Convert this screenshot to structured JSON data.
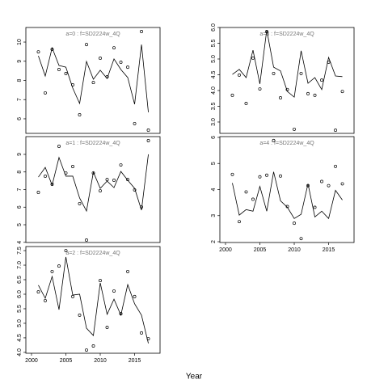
{
  "xlabel": "Year",
  "chart_data": [
    {
      "type": "line",
      "title": "a=0  :  f=SD2224w_4Q",
      "x": [
        2001,
        2002,
        2003,
        2004,
        2005,
        2006,
        2007,
        2008,
        2009,
        2010,
        2011,
        2012,
        2013,
        2014,
        2015,
        2016,
        2017
      ],
      "series": [
        {
          "style": "line",
          "color": "#000000",
          "values": [
            9.28,
            8.23,
            9.7,
            8.78,
            8.69,
            7.6,
            6.8,
            8.99,
            8.06,
            8.53,
            8.1,
            9.12,
            8.57,
            8.15,
            6.76,
            9.87,
            6.34
          ]
        },
        {
          "style": "points",
          "color": "#000000",
          "values": [
            9.49,
            7.35,
            9.62,
            8.57,
            8.36,
            7.77,
            6.21,
            9.87,
            7.89,
            9.16,
            8.19,
            9.7,
            8.95,
            8.69,
            5.75,
            10.55,
            5.41
          ]
        }
      ],
      "xlim": [
        1999.18,
        2018.7
      ],
      "ylim": [
        5.24,
        10.76
      ],
      "yticks": [
        6,
        7,
        8,
        9,
        10
      ]
    },
    {
      "type": "line",
      "title": "a=1  :  f=SD2224w_4Q",
      "x": [
        2001,
        2002,
        2003,
        2004,
        2005,
        2006,
        2007,
        2008,
        2009,
        2010,
        2011,
        2012,
        2013,
        2014,
        2015,
        2016,
        2017
      ],
      "series": [
        {
          "style": "line",
          "color": "#000000",
          "values": [
            7.71,
            8.26,
            7.25,
            8.82,
            7.76,
            7.76,
            6.52,
            5.78,
            7.99,
            7.07,
            7.48,
            7.11,
            8.03,
            7.53,
            7.07,
            5.83,
            9.0
          ]
        },
        {
          "style": "points",
          "color": "#000000",
          "values": [
            6.84,
            7.76,
            7.3,
            9.46,
            7.94,
            8.31,
            6.2,
            4.13,
            7.94,
            6.93,
            7.57,
            7.53,
            8.4,
            7.57,
            6.98,
            6.01,
            9.78
          ]
        }
      ],
      "xlim": [
        1999.18,
        2018.7
      ],
      "ylim": [
        3.99,
        10.01
      ],
      "yticks": [
        4,
        5,
        6,
        7,
        8,
        9
      ]
    },
    {
      "type": "line",
      "title": "a=2  :  f=SD2224w_4Q",
      "x": [
        2001,
        2002,
        2003,
        2004,
        2005,
        2006,
        2007,
        2008,
        2009,
        2010,
        2011,
        2012,
        2013,
        2014,
        2015,
        2016,
        2017
      ],
      "series": [
        {
          "style": "line",
          "color": "#000000",
          "values": [
            6.31,
            5.86,
            6.61,
            5.47,
            7.28,
            5.97,
            6.0,
            4.83,
            4.58,
            6.39,
            5.31,
            5.83,
            5.28,
            6.33,
            5.67,
            5.28,
            4.31
          ]
        },
        {
          "style": "points",
          "color": "#000000",
          "values": [
            6.08,
            5.78,
            6.78,
            6.97,
            7.5,
            5.92,
            5.28,
            4.08,
            4.22,
            6.47,
            4.86,
            6.11,
            5.33,
            6.78,
            5.92,
            4.67,
            4.47
          ]
        }
      ],
      "xlim": [
        1999.18,
        2018.7
      ],
      "ylim": [
        3.97,
        7.64
      ],
      "yticks": [
        {
          "value": 4,
          "label": "4.0"
        },
        {
          "value": 4.5,
          "label": "4.5"
        },
        {
          "value": 5,
          "label": "5.0"
        },
        {
          "value": 5.5,
          "label": "5.5"
        },
        {
          "value": 6,
          "label": "6.0"
        },
        {
          "value": 6.5,
          "label": "6.5"
        },
        {
          "value": 7,
          "label": "7.0"
        },
        {
          "value": 7.5,
          "label": "7.5"
        }
      ],
      "xticks": [
        2000,
        2005,
        2010,
        2015
      ]
    },
    {
      "type": "line",
      "title": "a=3  :  f=SD2224w_4Q",
      "x": [
        2001,
        2002,
        2003,
        2004,
        2005,
        2006,
        2007,
        2008,
        2009,
        2010,
        2011,
        2012,
        2013,
        2014,
        2015,
        2016,
        2017
      ],
      "series": [
        {
          "style": "line",
          "color": "#000000",
          "values": [
            4.51,
            4.67,
            4.41,
            5.28,
            4.21,
            5.92,
            4.74,
            4.62,
            3.97,
            3.79,
            5.26,
            4.23,
            4.41,
            4.03,
            5.05,
            4.46,
            4.44
          ]
        },
        {
          "style": "points",
          "color": "#000000",
          "values": [
            3.85,
            4.49,
            3.59,
            5.03,
            4.05,
            5.87,
            4.54,
            3.77,
            4.03,
            2.77,
            4.54,
            3.9,
            3.85,
            4.33,
            4.9,
            2.74,
            3.97
          ]
        }
      ],
      "xlim": [
        1999.18,
        2018.7
      ],
      "ylim": [
        2.64,
        6.0
      ],
      "yticks": [
        {
          "value": 3,
          "label": "3.0"
        },
        {
          "value": 3.5,
          "label": "3.5"
        },
        {
          "value": 4,
          "label": "4.0"
        },
        {
          "value": 4.5,
          "label": "4.5"
        },
        {
          "value": 5,
          "label": "5.0"
        },
        {
          "value": 5.5,
          "label": "5.5"
        },
        {
          "value": 6,
          "label": "6.0"
        }
      ]
    },
    {
      "type": "line",
      "title": "a=4  :  f=SD2224w_4Q",
      "x": [
        2001,
        2002,
        2003,
        2004,
        2005,
        2006,
        2007,
        2008,
        2009,
        2010,
        2011,
        2012,
        2013,
        2014,
        2015,
        2016,
        2017
      ],
      "series": [
        {
          "style": "line",
          "color": "#000000",
          "values": [
            4.25,
            3.02,
            3.23,
            3.17,
            4.12,
            3.17,
            4.68,
            3.57,
            3.32,
            2.89,
            3.05,
            4.22,
            2.95,
            3.17,
            2.89,
            3.97,
            3.6
          ]
        },
        {
          "style": "points",
          "color": "#000000",
          "values": [
            4.58,
            2.77,
            3.91,
            3.63,
            4.49,
            4.55,
            5.88,
            4.52,
            3.35,
            2.71,
            2.12,
            4.15,
            3.32,
            4.31,
            4.15,
            4.89,
            4.22
          ]
        }
      ],
      "xlim": [
        1999.18,
        2018.7
      ],
      "ylim": [
        1.97,
        6.03
      ],
      "yticks": [
        2,
        3,
        4,
        5,
        6
      ],
      "xticks": [
        2000,
        2005,
        2010,
        2015
      ]
    }
  ]
}
